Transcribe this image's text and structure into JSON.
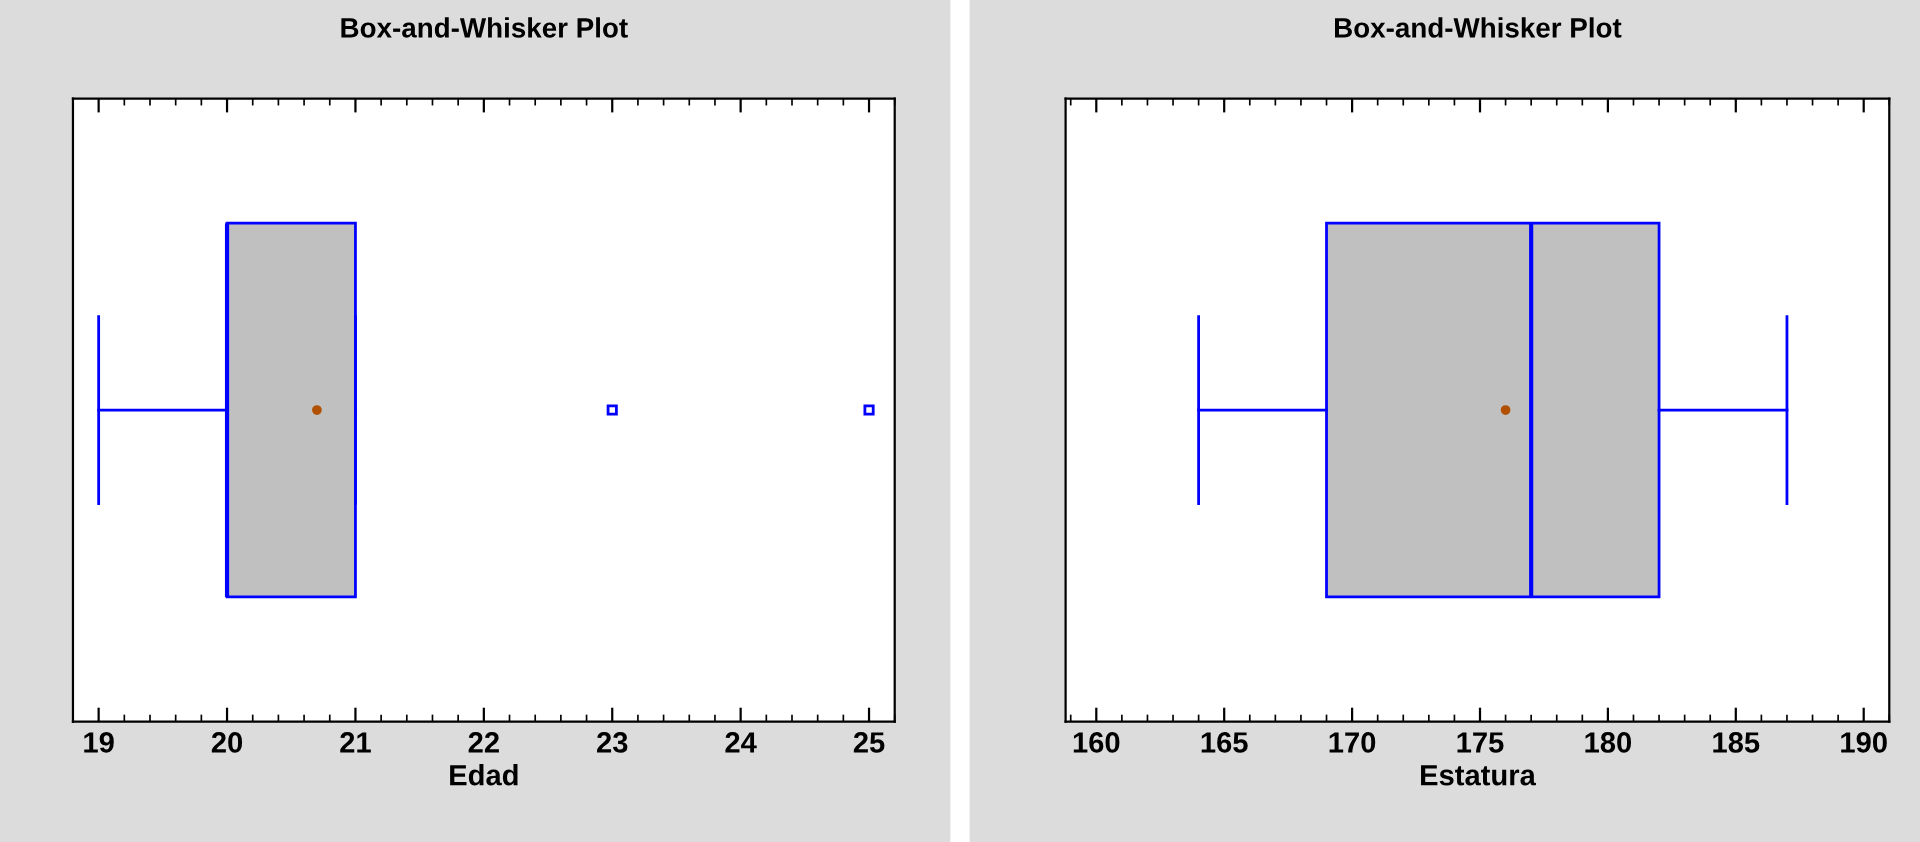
{
  "chart_data": [
    {
      "type": "box",
      "title": "Box-and-Whisker Plot",
      "xlabel": "Edad",
      "orientation": "horizontal",
      "categories": [
        null
      ],
      "color": "#c0c0c0",
      "xlim": [
        18.8,
        25.2
      ],
      "xticks": [
        19,
        20,
        21,
        22,
        23,
        24,
        25
      ],
      "tick_labels": "x",
      "grid": false,
      "legend": false,
      "boxes": [
        {
          "low": 19,
          "q1": 20,
          "median": 20,
          "q3": 21,
          "high": 21,
          "mean": 20.7,
          "outliers": [
            23,
            25
          ]
        }
      ]
    },
    {
      "type": "box",
      "title": "Box-and-Whisker Plot",
      "xlabel": "Estatura",
      "orientation": "horizontal",
      "categories": [
        null
      ],
      "color": "#c0c0c0",
      "xlim": [
        158.8,
        191
      ],
      "xticks": [
        160,
        165,
        170,
        175,
        180,
        185,
        190
      ],
      "tick_labels": "x",
      "grid": false,
      "legend": false,
      "boxes": [
        {
          "low": 164,
          "q1": 169,
          "median": 177,
          "q3": 182,
          "high": 187,
          "mean": 176
        }
      ]
    }
  ]
}
